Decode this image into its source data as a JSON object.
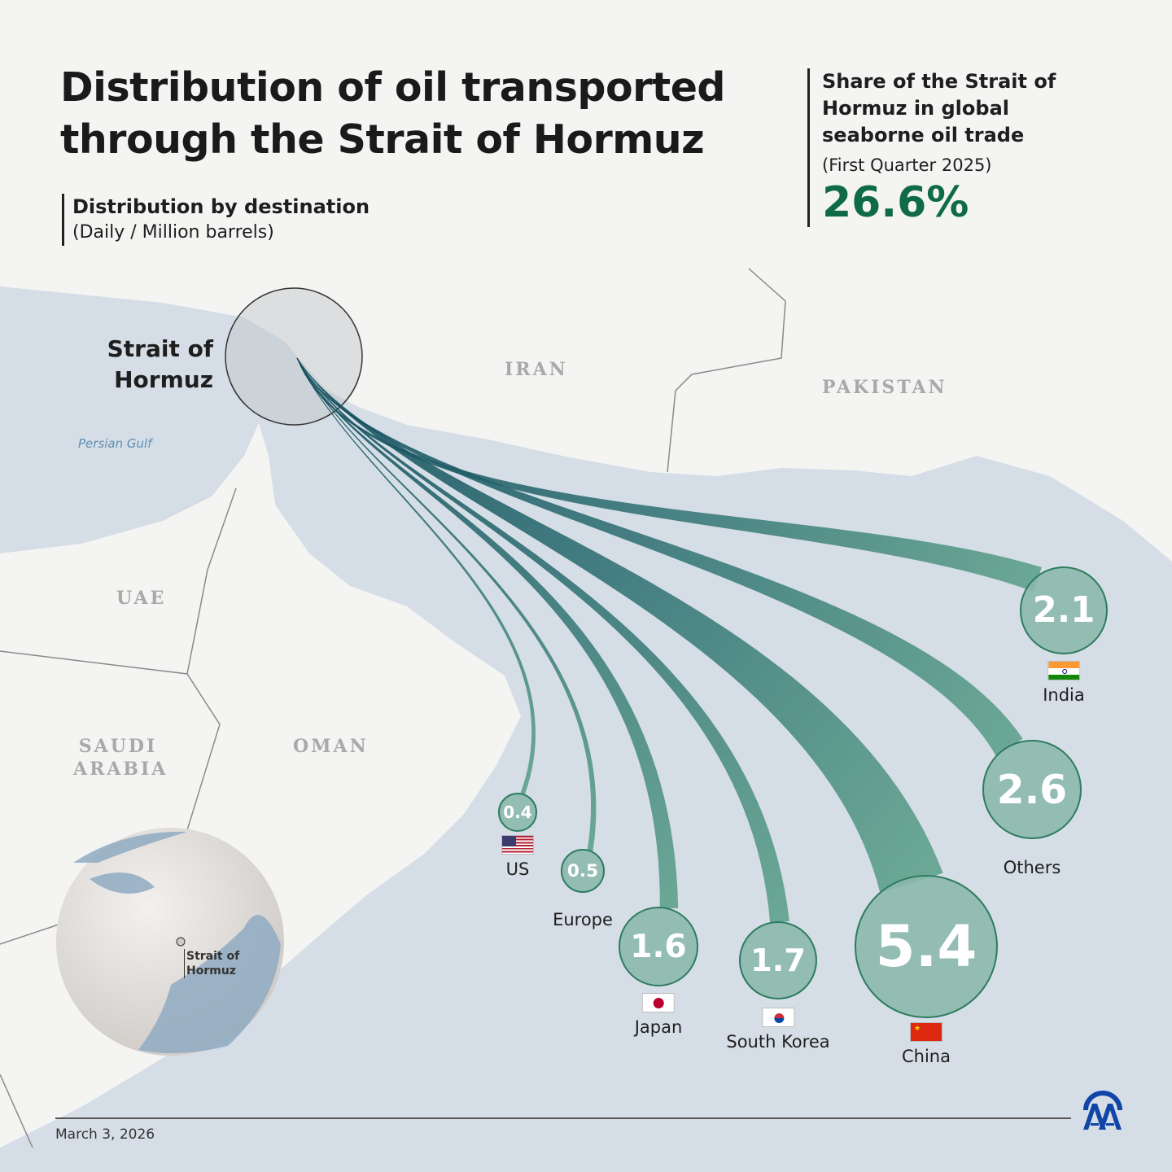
{
  "title": [
    "Distribution of oil transported",
    "through the Strait of Hormuz"
  ],
  "subtitle": {
    "heading": "Distribution by destination",
    "unit": "(Daily / Million barrels)"
  },
  "share": {
    "heading": "Share of the Strait of Hormuz in global seaborne oil trade",
    "period": "(First Quarter 2025)",
    "value": "26.6%",
    "color": "#0e6b45"
  },
  "map_labels": {
    "iran": "IRAN",
    "pakistan": "PAKISTAN",
    "uae": "UAE",
    "saudi": "SAUDI ARABIA",
    "oman": "OMAN",
    "gulf": "Persian Gulf",
    "strait": "Strait of Hormuz"
  },
  "globe": {
    "label": "Strait of Hormuz"
  },
  "destinations": [
    {
      "name": "India",
      "value": 2.1,
      "flag": "india-flag"
    },
    {
      "name": "Others",
      "value": 2.6,
      "flag": ""
    },
    {
      "name": "China",
      "value": 5.4,
      "flag": "china-flag"
    },
    {
      "name": "South Korea",
      "value": 1.7,
      "flag": "south-korea-flag"
    },
    {
      "name": "Japan",
      "value": 1.6,
      "flag": "japan-flag"
    },
    {
      "name": "Europe",
      "value": 0.5,
      "flag": ""
    },
    {
      "name": "US",
      "value": 0.4,
      "flag": "us-flag"
    }
  ],
  "colors": {
    "flow_start": "#0e4a5a",
    "flow_end": "#5da08a",
    "bubble": "#8cb8ac",
    "land": "#f4f4f3",
    "sea": "#d5dee6",
    "logo": "#1245a8"
  },
  "footer": {
    "date": "March 3, 2026",
    "logo": "AA"
  }
}
